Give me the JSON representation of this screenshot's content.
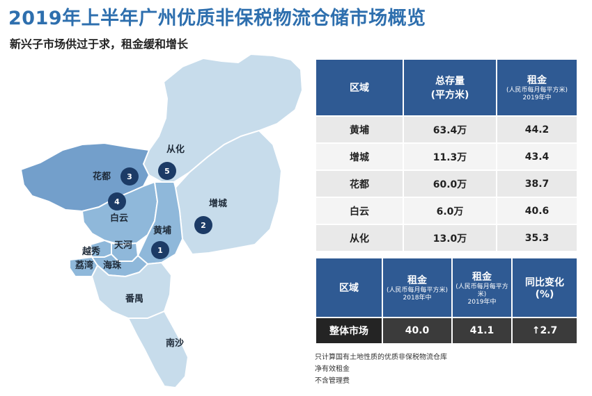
{
  "title": "2019年上半年广州优质非保税物流仓储市场概览",
  "subtitle": "新兴子市场供过于求，租金缓和增长",
  "map": {
    "colors": {
      "pale": "#c7dceb",
      "mid": "#8fb8da",
      "dark": "#739fcb",
      "badge": "#1c3b66"
    },
    "districts": {
      "conghua": "从化",
      "huadu": "花都",
      "baiyun": "白云",
      "zengcheng": "增城",
      "huangpu": "黄埔",
      "tianhe": "天河",
      "yuexiu": "越秀",
      "liwan": "荔湾",
      "haizhu": "海珠",
      "panyu": "番禺",
      "nansha": "南沙"
    },
    "badges": {
      "huangpu": "1",
      "zengcheng": "2",
      "huadu": "3",
      "baiyun": "4",
      "conghua": "5"
    }
  },
  "table1": {
    "headers": {
      "region": "区域",
      "stock": "总存量",
      "stock_unit": "(平方米)",
      "rent": "租金",
      "rent_unit": "(人民币每月每平方米)",
      "rent_period": "2019年中"
    },
    "rows": [
      {
        "region": "黄埔",
        "stock": "63.4万",
        "rent": "44.2"
      },
      {
        "region": "增城",
        "stock": "11.3万",
        "rent": "43.4"
      },
      {
        "region": "花都",
        "stock": "60.0万",
        "rent": "38.7"
      },
      {
        "region": "白云",
        "stock": "6.0万",
        "rent": "40.6"
      },
      {
        "region": "从化",
        "stock": "13.0万",
        "rent": "35.3"
      }
    ]
  },
  "table2": {
    "headers": {
      "region": "区域",
      "rent2018": "租金",
      "rent2018_unit": "(人民币每月每平方米)",
      "rent2018_period": "2018年中",
      "rent2019": "租金",
      "rent2019_unit": "(人民币每月每平方米)",
      "rent2019_period": "2019年中",
      "change": "同比变化",
      "change_unit": "(%)"
    },
    "row": {
      "region": "整体市场",
      "rent2018": "40.0",
      "rent2019": "41.1",
      "change": "↑2.7"
    }
  },
  "notes": [
    "只计算国有土地性质的优质非保税物流仓库",
    "净有效租金",
    "不含管理费"
  ]
}
